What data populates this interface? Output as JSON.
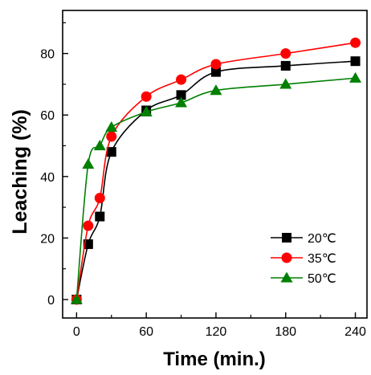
{
  "chart_data": {
    "type": "line",
    "xlabel": "Time (min.)",
    "ylabel": "Leaching (%)",
    "xlim": [
      -12,
      250
    ],
    "ylim": [
      -6,
      94
    ],
    "xticks": [
      0,
      60,
      120,
      180,
      240
    ],
    "yticks": [
      0,
      20,
      40,
      60,
      80
    ],
    "x": [
      0,
      10,
      20,
      30,
      60,
      90,
      120,
      180,
      240
    ],
    "series": [
      {
        "name": "20℃",
        "color": "#000000",
        "marker": "square",
        "values": [
          0,
          18,
          27,
          48,
          61.5,
          66.5,
          74,
          76,
          77.5
        ]
      },
      {
        "name": "35℃",
        "color": "#ff0000",
        "marker": "circle",
        "values": [
          0,
          24,
          33,
          53,
          66,
          71.5,
          76.5,
          80,
          83.5
        ]
      },
      {
        "name": "50℃",
        "color": "#008000",
        "marker": "triangle",
        "values": [
          0,
          44,
          50,
          56,
          61,
          64,
          68,
          70,
          72
        ]
      }
    ],
    "legend": "bottom-right",
    "grid": false
  }
}
